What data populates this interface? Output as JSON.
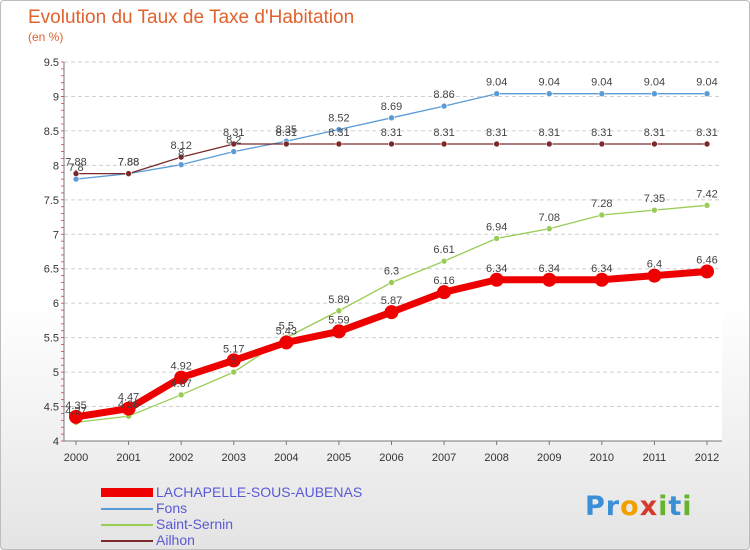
{
  "title": "Evolution du Taux de Taxe d'Habitation",
  "unit": "(en %)",
  "logo": {
    "text": "Proxiti",
    "letters": [
      "P",
      "r",
      "o",
      "x",
      "i",
      "t",
      "i"
    ],
    "colors": [
      "#3a8fd6",
      "#3a8fd6",
      "#f0a000",
      "#d63a2a",
      "#66b32e",
      "#3a8fd6",
      "#66b32e"
    ]
  },
  "chart_data": {
    "type": "line",
    "title": "Evolution du Taux de Taxe d'Habitation",
    "ylabel": "(en %)",
    "xlabel": "",
    "ylim": [
      4,
      9.5
    ],
    "grid": "horizontal-dashed",
    "yticks": [
      "4",
      "4.5",
      "5",
      "5.5",
      "6",
      "6.5",
      "7",
      "7.5",
      "8",
      "8.5",
      "9",
      "9.5"
    ],
    "ytick_values": [
      4,
      4.5,
      5,
      5.5,
      6,
      6.5,
      7,
      7.5,
      8,
      8.5,
      9,
      9.5
    ],
    "x": [
      "2000",
      "2001",
      "2002",
      "2003",
      "2004",
      "2005",
      "2006",
      "2007",
      "2008",
      "2009",
      "2010",
      "2011",
      "2012"
    ],
    "series": [
      {
        "name": "LACHAPELLE-SOUS-AUBENAS",
        "color": "#ee0000",
        "width": 7,
        "marker": 7,
        "values": [
          4.35,
          4.47,
          4.92,
          5.17,
          5.43,
          5.59,
          5.87,
          6.16,
          6.34,
          6.34,
          6.34,
          6.4,
          6.46
        ],
        "labels": [
          "4.35",
          "4.47",
          "4.92",
          "5.17",
          "5.43",
          "5.59",
          "5.87",
          "6.16",
          "6.34",
          "6.34",
          "6.34",
          "6.4",
          "6.46"
        ]
      },
      {
        "name": "Fons",
        "color": "#5b9bd5",
        "width": 1.3,
        "marker": 3,
        "values": [
          7.8,
          7.88,
          8.01,
          8.2,
          8.35,
          8.52,
          8.69,
          8.86,
          9.04,
          9.04,
          9.04,
          9.04,
          9.04
        ],
        "labels": [
          "7.8",
          "7.88",
          "8",
          "8.2",
          "8.35",
          "8.52",
          "8.69",
          "8.86",
          "9.04",
          "9.04",
          "9.04",
          "9.04",
          "9.04"
        ]
      },
      {
        "name": "Saint-Sernin",
        "color": "#99cc55",
        "width": 1.3,
        "marker": 3,
        "values": [
          4.27,
          4.36,
          4.67,
          5.0,
          5.5,
          5.89,
          6.3,
          6.61,
          6.94,
          7.08,
          7.28,
          7.35,
          7.42
        ],
        "labels": [
          "4.27",
          "4.36",
          "4.67",
          "5",
          "5.5",
          "5.89",
          "6.3",
          "6.61",
          "6.94",
          "7.08",
          "7.28",
          "7.35",
          "7.42"
        ]
      },
      {
        "name": "Ailhon",
        "color": "#7a2a2a",
        "width": 1.3,
        "marker": 3,
        "values": [
          7.88,
          7.88,
          8.12,
          8.31,
          8.31,
          8.31,
          8.31,
          8.31,
          8.31,
          8.31,
          8.31,
          8.31,
          8.31
        ],
        "labels": [
          "7.88",
          "7.88",
          "8.12",
          "8.31",
          "8.31",
          "8.31",
          "8.31",
          "8.31",
          "8.31",
          "8.31",
          "8.31",
          "8.31",
          "8.31"
        ]
      }
    ]
  }
}
